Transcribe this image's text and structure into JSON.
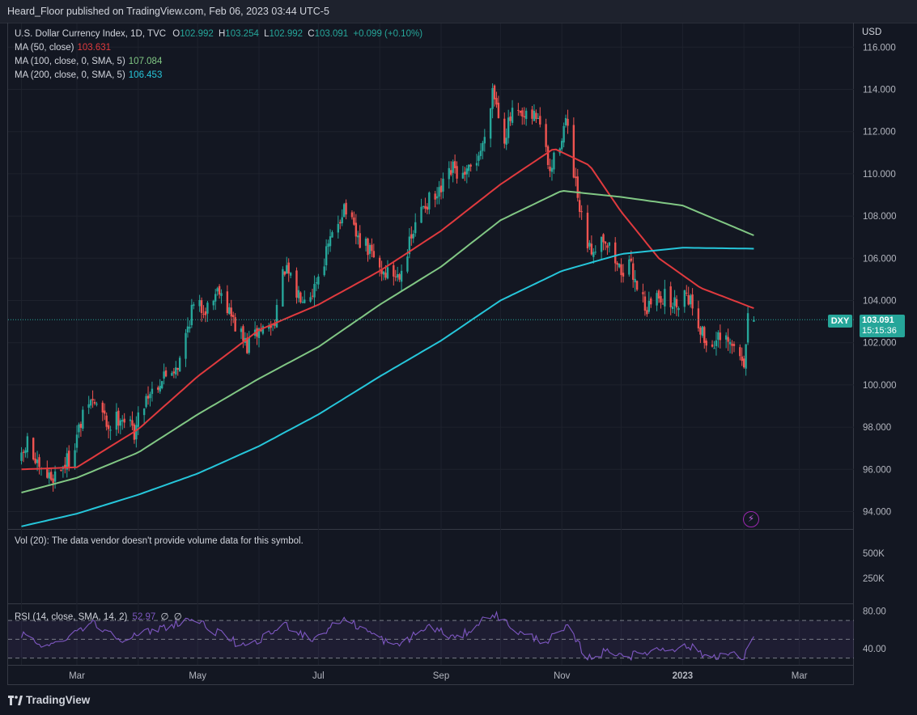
{
  "header": {
    "publish_line": "Heard_Floor published on TradingView.com, Feb 06, 2023 03:44 UTC-5"
  },
  "legend": {
    "symbol_line": "U.S. Dollar Currency Index, 1D, TVC",
    "ohlc": {
      "o_label": "O",
      "o": "102.992",
      "h_label": "H",
      "h": "103.254",
      "l_label": "L",
      "l": "102.992",
      "c_label": "C",
      "c": "103.091",
      "change": "+0.099 (+0.10%)"
    },
    "ma50": {
      "label": "MA (50, close)",
      "value": "103.631",
      "color": "#e03a3e"
    },
    "ma100": {
      "label": "MA (100, close, 0, SMA, 5)",
      "value": "107.084",
      "color": "#81c784"
    },
    "ma200": {
      "label": "MA (200, close, 0, SMA, 5)",
      "value": "106.453",
      "color": "#26c6da"
    }
  },
  "price_axis": {
    "currency": "USD",
    "ticks": [
      "116.000",
      "114.000",
      "112.000",
      "110.000",
      "108.000",
      "106.000",
      "104.000",
      "102.000",
      "100.000",
      "98.000",
      "96.000",
      "94.000"
    ],
    "symbol_tag": "DXY",
    "last_price": "103.091",
    "countdown": "15:15:36"
  },
  "volume_pane": {
    "message": "Vol (20): The data vendor doesn't provide volume data for this symbol.",
    "ticks": [
      "500K",
      "250K"
    ]
  },
  "rsi_pane": {
    "label": "RSI (14, close, SMA, 14, 2)",
    "value": "52.97",
    "extra1": "∅",
    "extra2": "∅",
    "ticks": [
      "80.00",
      "40.00"
    ],
    "line_color": "#7e57c2"
  },
  "time_axis": {
    "labels": [
      "Mar",
      "May",
      "Jul",
      "Sep",
      "Nov",
      "2023",
      "Mar"
    ]
  },
  "footer": {
    "brand": "TradingView"
  },
  "icons": {
    "alert": "lightning-bolt-icon",
    "logo": "tradingview-logo-icon"
  },
  "colors": {
    "up": "#26a69a",
    "down": "#ef5350",
    "background": "#131722",
    "grid": "#1e222d"
  },
  "chart_data": {
    "type": "candlestick",
    "title": "U.S. Dollar Currency Index, 1D, TVC",
    "ylabel": "USD",
    "ylim": [
      93.0,
      116.4
    ],
    "x_start": "2022-02-01",
    "x_end": "2023-02-06",
    "close_anchors": [
      [
        "2022-02-01",
        96.4
      ],
      [
        "2022-02-04",
        97.3
      ],
      [
        "2022-02-10",
        95.8
      ],
      [
        "2022-02-16",
        95.6
      ],
      [
        "2022-02-25",
        96.5
      ],
      [
        "2022-03-07",
        99.2
      ],
      [
        "2022-03-11",
        99.1
      ],
      [
        "2022-03-17",
        98.0
      ],
      [
        "2022-03-23",
        98.6
      ],
      [
        "2022-03-30",
        97.8
      ],
      [
        "2022-04-05",
        99.5
      ],
      [
        "2022-04-15",
        100.5
      ],
      [
        "2022-04-22",
        101.1
      ],
      [
        "2022-04-28",
        103.6
      ],
      [
        "2022-05-06",
        103.7
      ],
      [
        "2022-05-12",
        104.7
      ],
      [
        "2022-05-19",
        103.0
      ],
      [
        "2022-05-26",
        101.8
      ],
      [
        "2022-06-01",
        102.6
      ],
      [
        "2022-06-08",
        102.8
      ],
      [
        "2022-06-14",
        105.5
      ],
      [
        "2022-06-20",
        104.3
      ],
      [
        "2022-06-28",
        104.5
      ],
      [
        "2022-07-06",
        106.5
      ],
      [
        "2022-07-14",
        108.5
      ],
      [
        "2022-07-20",
        107.0
      ],
      [
        "2022-07-27",
        106.3
      ],
      [
        "2022-08-02",
        105.4
      ],
      [
        "2022-08-10",
        105.2
      ],
      [
        "2022-08-16",
        106.6
      ],
      [
        "2022-08-23",
        108.6
      ],
      [
        "2022-08-30",
        108.8
      ],
      [
        "2022-09-07",
        110.2
      ],
      [
        "2022-09-13",
        109.7
      ],
      [
        "2022-09-22",
        111.3
      ],
      [
        "2022-09-27",
        114.1
      ],
      [
        "2022-10-03",
        111.8
      ],
      [
        "2022-10-07",
        112.8
      ],
      [
        "2022-10-13",
        112.5
      ],
      [
        "2022-10-20",
        112.8
      ],
      [
        "2022-10-26",
        110.0
      ],
      [
        "2022-11-03",
        112.5
      ],
      [
        "2022-11-10",
        108.1
      ],
      [
        "2022-11-15",
        106.3
      ],
      [
        "2022-11-22",
        107.1
      ],
      [
        "2022-11-30",
        105.5
      ],
      [
        "2022-12-06",
        105.5
      ],
      [
        "2022-12-14",
        103.6
      ],
      [
        "2022-12-20",
        104.3
      ],
      [
        "2022-12-28",
        103.8
      ],
      [
        "2023-01-03",
        104.5
      ],
      [
        "2023-01-09",
        103.0
      ],
      [
        "2023-01-13",
        101.9
      ],
      [
        "2023-01-19",
        102.1
      ],
      [
        "2023-01-26",
        101.8
      ],
      [
        "2023-02-01",
        101.2
      ],
      [
        "2023-02-02",
        101.8
      ],
      [
        "2023-02-03",
        103.0
      ],
      [
        "2023-02-06",
        103.091
      ]
    ],
    "series": [
      {
        "name": "MA (50, close)",
        "points": [
          [
            "2022-02-01",
            96.0
          ],
          [
            "2022-03-01",
            96.1
          ],
          [
            "2022-04-01",
            97.9
          ],
          [
            "2022-05-01",
            100.4
          ],
          [
            "2022-06-01",
            102.6
          ],
          [
            "2022-07-01",
            103.8
          ],
          [
            "2022-08-01",
            105.4
          ],
          [
            "2022-09-01",
            107.3
          ],
          [
            "2022-10-01",
            109.5
          ],
          [
            "2022-10-28",
            111.2
          ],
          [
            "2022-11-15",
            110.4
          ],
          [
            "2022-12-01",
            108.2
          ],
          [
            "2022-12-20",
            106.0
          ],
          [
            "2023-01-10",
            104.6
          ],
          [
            "2023-02-06",
            103.631
          ]
        ]
      },
      {
        "name": "MA (100, close, 0, SMA, 5)",
        "points": [
          [
            "2022-02-01",
            94.9
          ],
          [
            "2022-03-01",
            95.6
          ],
          [
            "2022-04-01",
            96.8
          ],
          [
            "2022-05-01",
            98.6
          ],
          [
            "2022-06-01",
            100.3
          ],
          [
            "2022-07-01",
            101.8
          ],
          [
            "2022-08-01",
            103.8
          ],
          [
            "2022-09-01",
            105.6
          ],
          [
            "2022-10-01",
            107.8
          ],
          [
            "2022-11-01",
            109.2
          ],
          [
            "2022-12-01",
            108.9
          ],
          [
            "2023-01-01",
            108.5
          ],
          [
            "2023-02-06",
            107.084
          ]
        ]
      },
      {
        "name": "MA (200, close, 0, SMA, 5)",
        "points": [
          [
            "2022-02-01",
            93.3
          ],
          [
            "2022-03-01",
            93.9
          ],
          [
            "2022-04-01",
            94.8
          ],
          [
            "2022-05-01",
            95.8
          ],
          [
            "2022-06-01",
            97.1
          ],
          [
            "2022-07-01",
            98.6
          ],
          [
            "2022-08-01",
            100.4
          ],
          [
            "2022-09-01",
            102.1
          ],
          [
            "2022-10-01",
            104.0
          ],
          [
            "2022-11-01",
            105.4
          ],
          [
            "2022-12-01",
            106.2
          ],
          [
            "2023-01-01",
            106.5
          ],
          [
            "2023-02-06",
            106.453
          ]
        ]
      }
    ],
    "rsi_ylim": [
      20,
      90
    ],
    "rsi_anchors": [
      [
        "2022-02-01",
        55
      ],
      [
        "2022-02-15",
        42
      ],
      [
        "2022-03-08",
        68
      ],
      [
        "2022-03-25",
        50
      ],
      [
        "2022-04-28",
        72
      ],
      [
        "2022-05-26",
        40
      ],
      [
        "2022-06-14",
        66
      ],
      [
        "2022-06-28",
        50
      ],
      [
        "2022-07-14",
        72
      ],
      [
        "2022-08-09",
        42
      ],
      [
        "2022-08-26",
        64
      ],
      [
        "2022-09-09",
        50
      ],
      [
        "2022-09-27",
        78
      ],
      [
        "2022-10-12",
        55
      ],
      [
        "2022-10-24",
        48
      ],
      [
        "2022-11-04",
        62
      ],
      [
        "2022-11-14",
        30
      ],
      [
        "2022-11-25",
        38
      ],
      [
        "2022-12-05",
        32
      ],
      [
        "2022-12-13",
        36
      ],
      [
        "2022-12-21",
        40
      ],
      [
        "2023-01-05",
        42
      ],
      [
        "2023-01-13",
        32
      ],
      [
        "2023-01-25",
        34
      ],
      [
        "2023-02-01",
        30
      ],
      [
        "2023-02-06",
        52.97
      ]
    ],
    "grid": true
  }
}
